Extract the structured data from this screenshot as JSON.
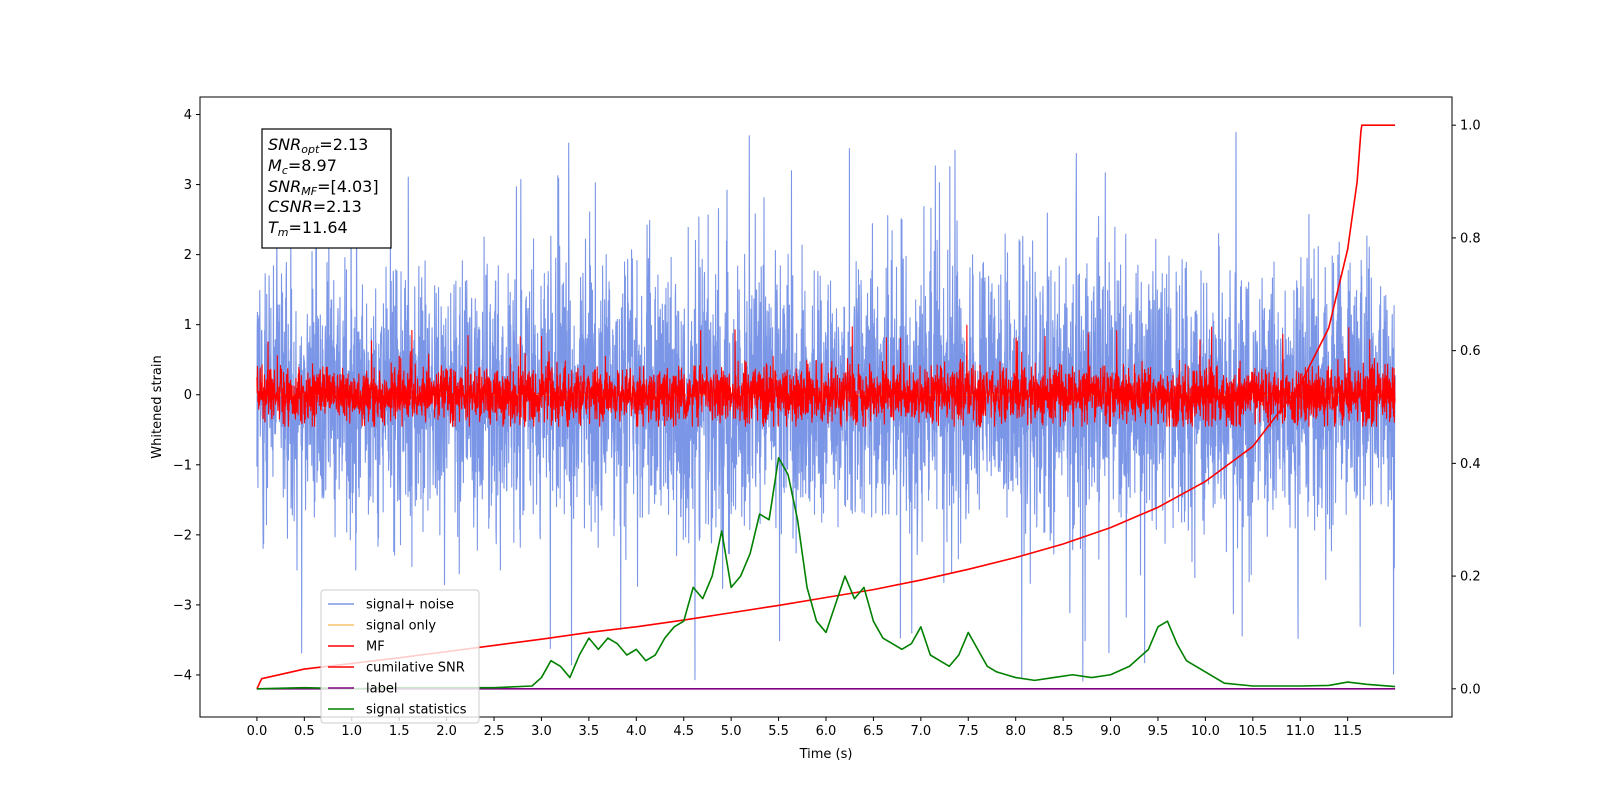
{
  "chart_data": {
    "type": "line",
    "xlabel": "Time (s)",
    "ylabel": "Whitened strain",
    "xlim": [
      -0.6,
      12.6
    ],
    "ylim": [
      -4.6,
      4.25
    ],
    "y2lim": [
      -0.05,
      1.05
    ],
    "xticks": [
      "0.0",
      "0.5",
      "1.0",
      "1.5",
      "2.0",
      "2.5",
      "3.0",
      "3.5",
      "4.0",
      "4.5",
      "5.0",
      "5.5",
      "6.0",
      "6.5",
      "7.0",
      "7.5",
      "8.0",
      "8.5",
      "9.0",
      "9.5",
      "10.0",
      "10.5",
      "11.0",
      "11.5"
    ],
    "yticks": [
      "4",
      "3",
      "2",
      "1",
      "0",
      "−1",
      "−2",
      "−3",
      "−4"
    ],
    "y2ticks": [
      "1.0",
      "0.8",
      "0.6",
      "0.4",
      "0.2",
      "0.0"
    ],
    "grid": false,
    "legend_position": "lower-left",
    "info_box": {
      "lines": [
        {
          "label": "SNR",
          "sub": "opt",
          "value": "=2.13"
        },
        {
          "label": "M",
          "sub": "c",
          "value": "=8.97"
        },
        {
          "label": "SNR",
          "sub": "MF",
          "value": "=[4.03]"
        },
        {
          "label": "CSNR",
          "sub": "",
          "value": "=2.13"
        },
        {
          "label": "T",
          "sub": "m",
          "value": "=11.64"
        }
      ]
    },
    "series": [
      {
        "name": "signal+ noise",
        "axis": "left",
        "color": "#7b96e6",
        "kind": "noise",
        "x_range": [
          0,
          12
        ],
        "spread_sigma": 0.95,
        "extreme_range": [
          -4.15,
          3.85
        ]
      },
      {
        "name": "signal only",
        "axis": "left",
        "color": "#f5c36b",
        "kind": "flat",
        "x_range": [
          0,
          12
        ],
        "value": 0
      },
      {
        "name": "MF",
        "axis": "left",
        "color": "#ff0000",
        "kind": "noise",
        "x_range": [
          0,
          12
        ],
        "spread_sigma": 0.2,
        "extreme_range": [
          -0.45,
          1.0
        ]
      },
      {
        "name": "cumilative SNR",
        "axis": "right",
        "color": "#ff0000",
        "x": [
          0.0,
          0.05,
          0.5,
          1.0,
          1.5,
          2.0,
          2.5,
          3.0,
          3.5,
          4.0,
          4.5,
          5.0,
          5.5,
          6.0,
          6.5,
          7.0,
          7.5,
          8.0,
          8.5,
          9.0,
          9.5,
          10.0,
          10.5,
          11.0,
          11.3,
          11.5,
          11.6,
          11.64,
          11.65,
          12.0
        ],
        "values": [
          0.0,
          0.018,
          0.035,
          0.045,
          0.055,
          0.066,
          0.077,
          0.088,
          0.1,
          0.11,
          0.122,
          0.135,
          0.148,
          0.162,
          0.176,
          0.193,
          0.212,
          0.233,
          0.257,
          0.286,
          0.322,
          0.368,
          0.43,
          0.54,
          0.64,
          0.78,
          0.9,
          0.99,
          1.0,
          1.0
        ]
      },
      {
        "name": "label",
        "axis": "right",
        "color": "#800080",
        "x": [
          0.0,
          12.0
        ],
        "values": [
          0.0,
          0.0
        ]
      },
      {
        "name": "signal statistics",
        "axis": "right",
        "color": "#008000",
        "x": [
          0.0,
          0.5,
          1.0,
          1.5,
          2.0,
          2.5,
          2.9,
          3.0,
          3.1,
          3.2,
          3.3,
          3.4,
          3.5,
          3.6,
          3.7,
          3.8,
          3.9,
          4.0,
          4.1,
          4.2,
          4.3,
          4.4,
          4.5,
          4.6,
          4.7,
          4.8,
          4.9,
          5.0,
          5.1,
          5.2,
          5.3,
          5.4,
          5.5,
          5.6,
          5.7,
          5.8,
          5.9,
          6.0,
          6.1,
          6.2,
          6.3,
          6.4,
          6.5,
          6.6,
          6.7,
          6.8,
          6.9,
          7.0,
          7.1,
          7.2,
          7.3,
          7.4,
          7.5,
          7.6,
          7.7,
          7.8,
          7.9,
          8.0,
          8.2,
          8.4,
          8.6,
          8.8,
          9.0,
          9.2,
          9.4,
          9.5,
          9.6,
          9.7,
          9.8,
          10.0,
          10.2,
          10.5,
          11.0,
          11.3,
          11.5,
          11.7,
          12.0
        ],
        "values": [
          0.0,
          0.002,
          0.0,
          0.002,
          0.002,
          0.002,
          0.005,
          0.02,
          0.05,
          0.04,
          0.02,
          0.06,
          0.09,
          0.07,
          0.09,
          0.08,
          0.06,
          0.07,
          0.05,
          0.06,
          0.09,
          0.11,
          0.12,
          0.18,
          0.16,
          0.2,
          0.28,
          0.18,
          0.2,
          0.24,
          0.31,
          0.3,
          0.41,
          0.38,
          0.3,
          0.18,
          0.12,
          0.1,
          0.15,
          0.2,
          0.16,
          0.18,
          0.12,
          0.09,
          0.08,
          0.07,
          0.08,
          0.11,
          0.06,
          0.05,
          0.04,
          0.06,
          0.1,
          0.07,
          0.04,
          0.03,
          0.025,
          0.02,
          0.015,
          0.02,
          0.025,
          0.02,
          0.025,
          0.04,
          0.07,
          0.11,
          0.12,
          0.08,
          0.05,
          0.03,
          0.01,
          0.005,
          0.005,
          0.006,
          0.012,
          0.008,
          0.004
        ]
      }
    ]
  }
}
